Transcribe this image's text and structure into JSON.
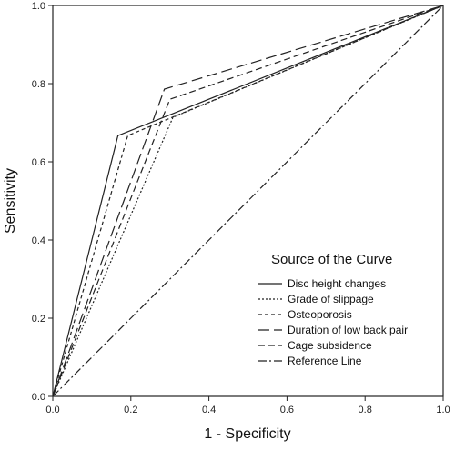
{
  "chart_data": {
    "type": "line",
    "title": "",
    "xlabel": "1 - Specificity",
    "ylabel": "Sensitivity",
    "xlim": [
      0.0,
      1.0
    ],
    "ylim": [
      0.0,
      1.0
    ],
    "x_ticks": [
      "0.0",
      "0.2",
      "0.4",
      "0.6",
      "0.8",
      "1.0"
    ],
    "y_ticks": [
      "0.0",
      "0.2",
      "0.4",
      "0.6",
      "0.8",
      "1.0"
    ],
    "grid": false,
    "legend": {
      "title": "Source of the Curve",
      "placement": "bottom-right"
    },
    "series": [
      {
        "name": "Disc height changes",
        "style": "solid",
        "points": [
          [
            0,
            0
          ],
          [
            0.167,
            0.667
          ],
          [
            1,
            1
          ]
        ]
      },
      {
        "name": "Grade of slippage",
        "style": "dotted",
        "points": [
          [
            0,
            0
          ],
          [
            0.308,
            0.714
          ],
          [
            1,
            1
          ]
        ]
      },
      {
        "name": "Osteoporosis",
        "style": "short-dash",
        "points": [
          [
            0,
            0
          ],
          [
            0.192,
            0.667
          ],
          [
            1,
            1
          ]
        ]
      },
      {
        "name": "Duration of low back pair",
        "style": "long-dash",
        "points": [
          [
            0,
            0
          ],
          [
            0.286,
            0.786
          ],
          [
            1,
            1
          ]
        ]
      },
      {
        "name": "Cage subsidence",
        "style": "dash",
        "points": [
          [
            0,
            0
          ],
          [
            0.3,
            0.76
          ],
          [
            1,
            1
          ]
        ]
      },
      {
        "name": "Reference Line",
        "style": "dash-dot",
        "points": [
          [
            0,
            0
          ],
          [
            1,
            1
          ]
        ]
      }
    ]
  }
}
